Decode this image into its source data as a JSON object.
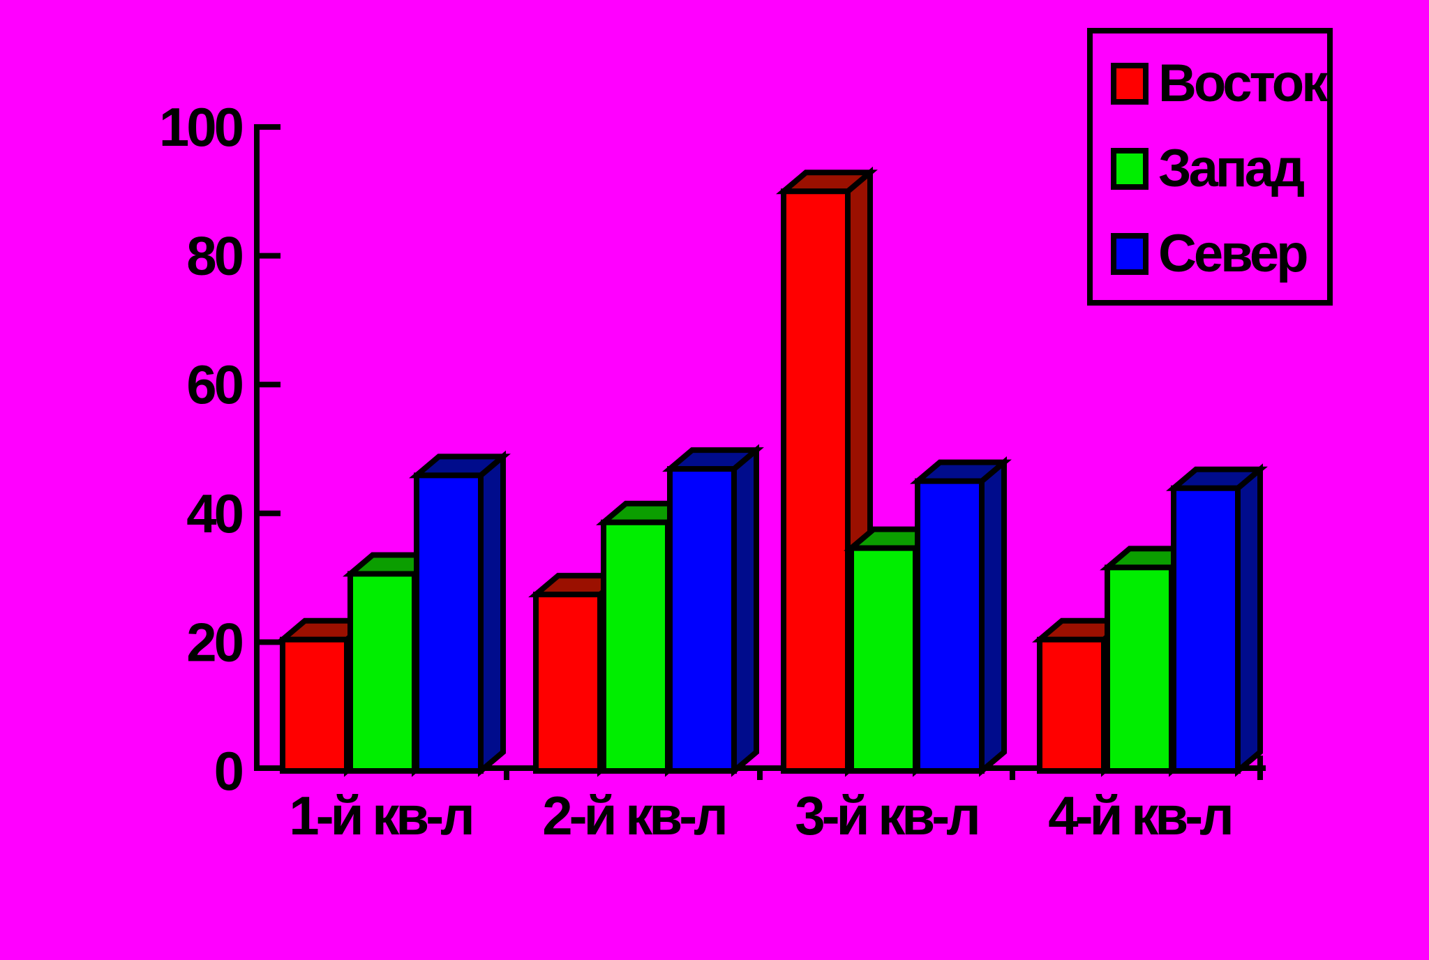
{
  "background": "#FF00FF",
  "axis_color": "#000000",
  "text_color": "#000000",
  "chart_data": {
    "type": "bar",
    "subtype": "3d-columns",
    "title": "",
    "xlabel": "",
    "ylabel": "",
    "categories": [
      "1-й кв-л",
      "2-й кв-л",
      "3-й кв-л",
      "4-й кв-л"
    ],
    "series": [
      {
        "key": "vostok",
        "name": "Восток",
        "color": "#FF0000",
        "dark": "#9B1000",
        "values": [
          20.4,
          27.4,
          90,
          20.4
        ]
      },
      {
        "key": "zapad",
        "name": "Запад",
        "color": "#00EE00",
        "dark": "#0B9E00",
        "values": [
          30.6,
          38.6,
          34.6,
          31.6
        ]
      },
      {
        "key": "sever",
        "name": "Север",
        "color": "#0000FF",
        "dark": "#000C8C",
        "values": [
          45.9,
          46.9,
          45,
          43.9
        ]
      }
    ],
    "ylim": [
      0,
      100
    ],
    "yticks": [
      0,
      20,
      40,
      60,
      80,
      100
    ],
    "grid": false,
    "legend_position": "top-right"
  }
}
